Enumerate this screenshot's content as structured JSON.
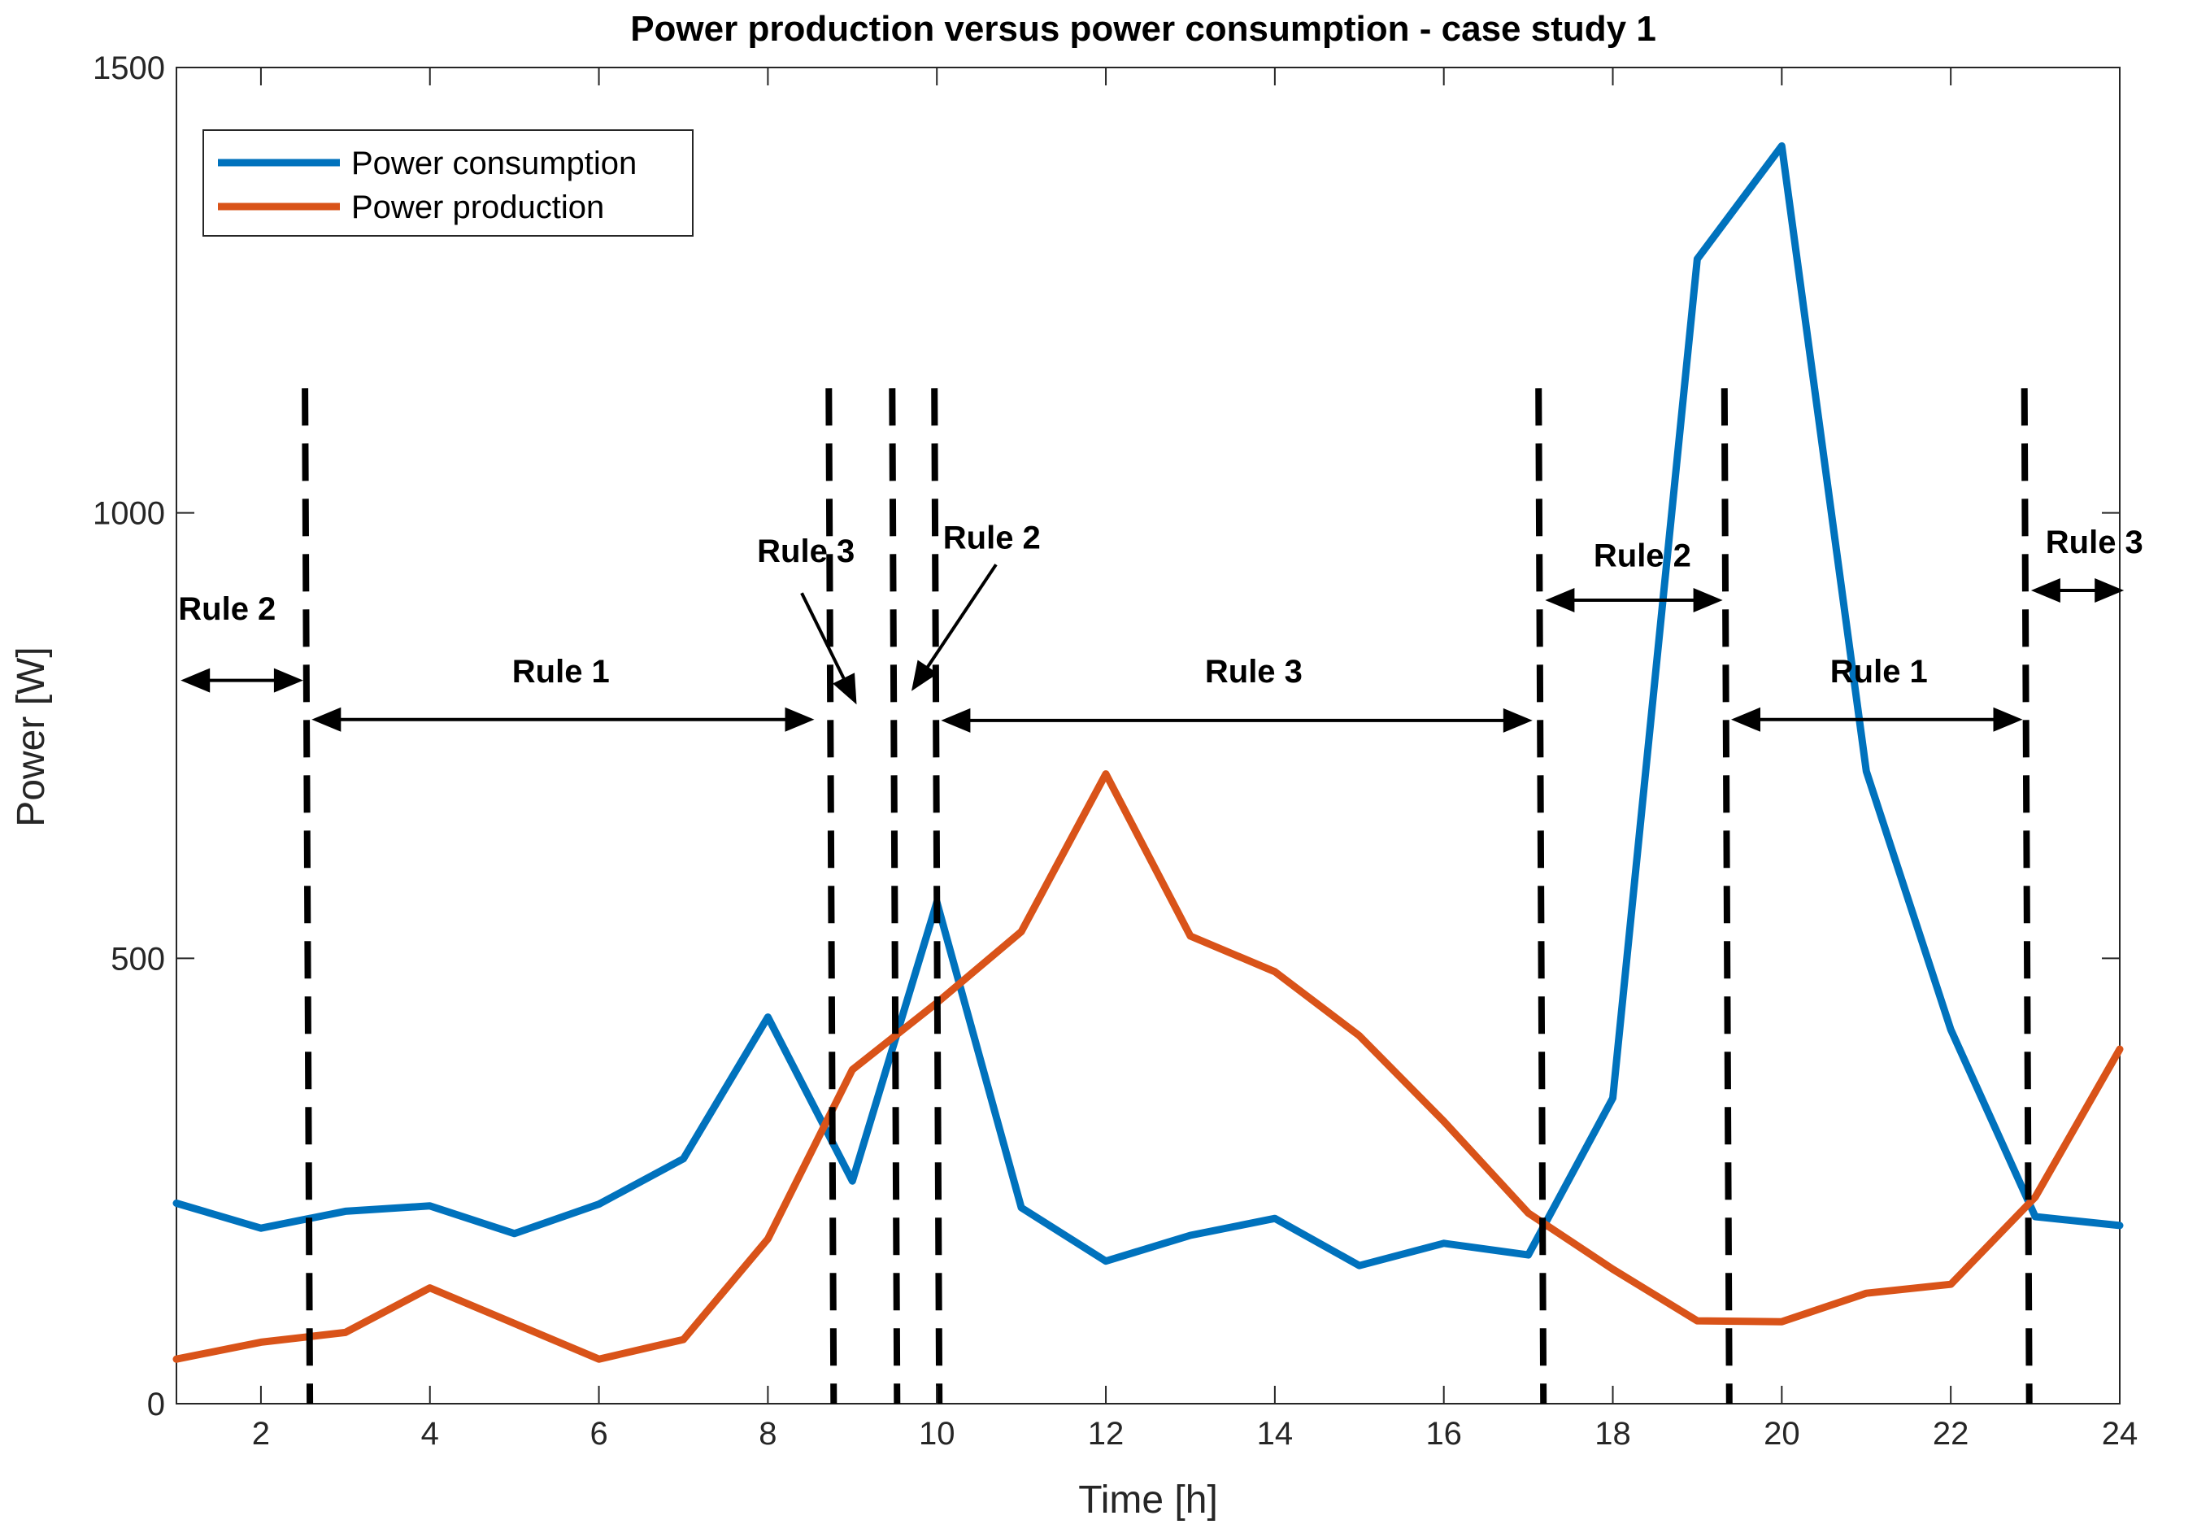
{
  "chart_data": {
    "type": "line",
    "title": "Power production versus power consumption - case study 1",
    "xlabel": "Time [h]",
    "ylabel": "Power [W]",
    "xlim": [
      1,
      24
    ],
    "ylim": [
      0,
      1500
    ],
    "xticks": [
      2,
      4,
      6,
      8,
      10,
      12,
      14,
      16,
      18,
      20,
      22,
      24
    ],
    "yticks": [
      0,
      500,
      1000,
      1500
    ],
    "grid": false,
    "legend_position": "top-left",
    "x": [
      1,
      2,
      3,
      4,
      5,
      6,
      7,
      8,
      9,
      10,
      11,
      12,
      13,
      14,
      15,
      16,
      17,
      18,
      19,
      20,
      21,
      22,
      23,
      24
    ],
    "series": [
      {
        "name": "Power consumption",
        "color": "#0072BD",
        "values": [
          225,
          197,
          216,
          222,
          191,
          224,
          275,
          434,
          250,
          563,
          220,
          160,
          189,
          208,
          155,
          180,
          167,
          343,
          1285,
          1412,
          710,
          420,
          210,
          200
        ]
      },
      {
        "name": "Power production",
        "color": "#D95319",
        "values": [
          50,
          69,
          80,
          130,
          90,
          50,
          72,
          185,
          375,
          450,
          530,
          707,
          525,
          485,
          413,
          317,
          214,
          151,
          93,
          92,
          124,
          134,
          232,
          398
        ]
      }
    ],
    "vertical_lines": [
      2.55,
      8.75,
      9.5,
      10.0,
      17.15,
      19.35,
      22.9
    ],
    "vertical_line_range": [
      0,
      1140
    ],
    "annotations": [
      {
        "text": "Rule 2",
        "x": 1.6,
        "y": 880
      },
      {
        "text": "Rule 1",
        "x": 5.55,
        "y": 810
      },
      {
        "text": "Rule 3",
        "x": 8.45,
        "y": 945
      },
      {
        "text": "Rule 2",
        "x": 10.65,
        "y": 960
      },
      {
        "text": "Rule 3",
        "x": 13.75,
        "y": 810
      },
      {
        "text": "Rule 2",
        "x": 18.35,
        "y": 940
      },
      {
        "text": "Rule 1",
        "x": 21.15,
        "y": 810
      },
      {
        "text": "Rule 3",
        "x": 23.7,
        "y": 955
      }
    ],
    "range_arrows": [
      {
        "from": 1.05,
        "to": 2.5,
        "y": 812
      },
      {
        "from": 2.6,
        "to": 8.55,
        "y": 768
      },
      {
        "from": 10.05,
        "to": 17.05,
        "y": 767
      },
      {
        "from": 17.2,
        "to": 19.3,
        "y": 902
      },
      {
        "from": 19.4,
        "to": 22.85,
        "y": 768
      },
      {
        "from": 22.95,
        "to": 24.05,
        "y": 913
      }
    ],
    "pointer_arrows": [
      {
        "from": [
          8.4,
          910
        ],
        "to": [
          9.05,
          785
        ]
      },
      {
        "from": [
          10.7,
          942
        ],
        "to": [
          9.7,
          800
        ]
      }
    ]
  }
}
